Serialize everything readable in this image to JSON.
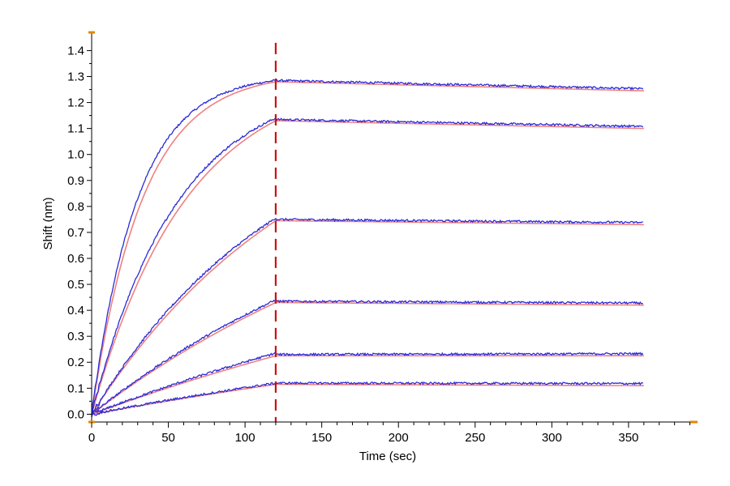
{
  "chart_data": {
    "type": "line",
    "title": "",
    "xlabel": "Time (sec)",
    "ylabel": "Shift (nm)",
    "xlim": [
      0,
      395
    ],
    "ylim": [
      -0.03,
      1.47
    ],
    "xticks": [
      0,
      50,
      100,
      150,
      200,
      250,
      300,
      350
    ],
    "yticks": [
      0.0,
      0.1,
      0.2,
      0.3,
      0.4,
      0.5,
      0.6,
      0.7,
      0.8,
      0.9,
      1.0,
      1.1,
      1.2,
      1.3,
      1.4
    ],
    "grid": false,
    "legend": "none",
    "colors": {
      "measured": "#2a2ad6",
      "fit": "#f08080",
      "divider": "#cc1111",
      "axis_endcap": "#e08a00"
    },
    "divider_x": 120,
    "x_end": 360,
    "series": [
      {
        "association_end": 1.28,
        "dissociation_end": 1.245,
        "measured_peak": 1.285,
        "fit_k": 0.03
      },
      {
        "association_end": 1.13,
        "dissociation_end": 1.1,
        "measured_peak": 1.14,
        "fit_k": 0.016
      },
      {
        "association_end": 0.745,
        "dissociation_end": 0.73,
        "measured_peak": 0.755,
        "fit_k": 0.007
      },
      {
        "association_end": 0.43,
        "dissociation_end": 0.42,
        "measured_peak": 0.44,
        "fit_k": 0.004
      },
      {
        "association_end": 0.225,
        "dissociation_end": 0.225,
        "measured_peak": 0.235,
        "fit_k": 0.0025
      },
      {
        "association_end": 0.115,
        "dissociation_end": 0.11,
        "measured_peak": 0.12,
        "fit_k": 0.002
      }
    ]
  }
}
